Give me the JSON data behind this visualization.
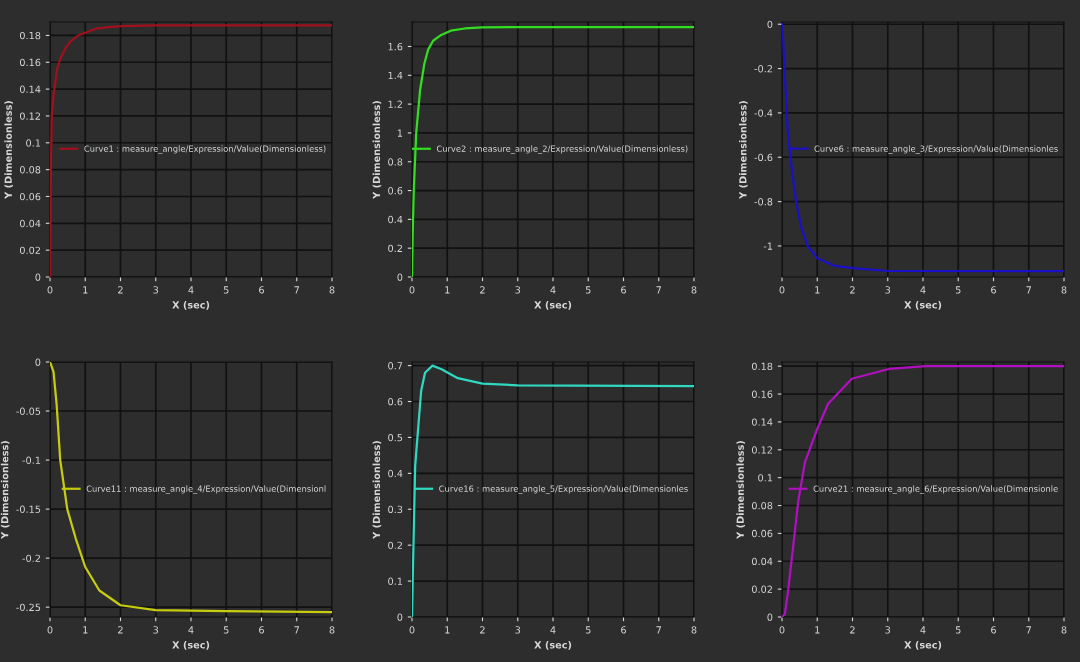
{
  "chart_data": [
    {
      "type": "line",
      "xlabel": "X (sec)",
      "ylabel": "Y (Dimensionless)",
      "xlim": [
        0,
        8
      ],
      "xticks": [
        0,
        1,
        2,
        3,
        4,
        5,
        6,
        7,
        8
      ],
      "ylim": [
        0,
        0.19
      ],
      "yticks": [
        0,
        0.02,
        0.04,
        0.06,
        0.08,
        0.1,
        0.12,
        0.14,
        0.16,
        0.18
      ],
      "grid": true,
      "legend": "right",
      "series": [
        {
          "name": "Curve1 : measure_angle/Expression/Value(Dimensionless)",
          "color": "#a0101e",
          "x": [
            0,
            0.01,
            0.03,
            0.05,
            0.1,
            0.2,
            0.3,
            0.45,
            0.6,
            0.8,
            1,
            1.3,
            1.6,
            2,
            3,
            5,
            8
          ],
          "values": [
            0,
            0.03,
            0.09,
            0.12,
            0.135,
            0.155,
            0.163,
            0.171,
            0.176,
            0.18,
            0.182,
            0.185,
            0.186,
            0.187,
            0.1875,
            0.1875,
            0.1875
          ]
        }
      ]
    },
    {
      "type": "line",
      "xlabel": "X (sec)",
      "ylabel": "Y (Dimensionless)",
      "xlim": [
        0,
        8
      ],
      "xticks": [
        0,
        1,
        2,
        3,
        4,
        5,
        6,
        7,
        8
      ],
      "ylim": [
        0,
        1.77
      ],
      "yticks": [
        0,
        0.2,
        0.4,
        0.6,
        0.8,
        1,
        1.2,
        1.4,
        1.6
      ],
      "grid": true,
      "legend": "right",
      "series": [
        {
          "name": "Curve2 : measure_angle_2/Expression/Value(Dimensionless)",
          "color": "#33dd22",
          "x": [
            0,
            0.02,
            0.05,
            0.12,
            0.23,
            0.35,
            0.46,
            0.6,
            0.83,
            1.1,
            1.5,
            2,
            3,
            8
          ],
          "values": [
            0,
            0.3,
            0.6,
            1.0,
            1.3,
            1.48,
            1.58,
            1.64,
            1.68,
            1.71,
            1.725,
            1.732,
            1.735,
            1.735
          ]
        }
      ]
    },
    {
      "type": "line",
      "xlabel": "X (sec)",
      "ylabel": "Y (Dimensionless)",
      "xlim": [
        0,
        8
      ],
      "xticks": [
        0,
        1,
        2,
        3,
        4,
        5,
        6,
        7,
        8
      ],
      "ylim": [
        -1.14,
        0.01
      ],
      "yticks": [
        -1,
        -0.8,
        -0.6,
        -0.4,
        -0.2,
        0
      ],
      "grid": true,
      "legend": "right",
      "series": [
        {
          "name": "Curve6 : measure_angle_3/Expression/Value(Dimensionles",
          "color": "#1a10c8",
          "x": [
            0,
            0.03,
            0.07,
            0.16,
            0.25,
            0.4,
            0.55,
            0.73,
            1,
            1.5,
            2,
            3,
            8
          ],
          "values": [
            0,
            -0.06,
            -0.2,
            -0.48,
            -0.62,
            -0.8,
            -0.92,
            -1.0,
            -1.055,
            -1.09,
            -1.1,
            -1.113,
            -1.114
          ]
        }
      ]
    },
    {
      "type": "line",
      "xlabel": "X (sec)",
      "ylabel": "Y (Dimensionless)",
      "xlim": [
        0,
        8
      ],
      "xticks": [
        0,
        1,
        2,
        3,
        4,
        5,
        6,
        7,
        8
      ],
      "ylim": [
        -0.26,
        0
      ],
      "yticks": [
        -0.25,
        -0.2,
        -0.15,
        -0.1,
        -0.05,
        0
      ],
      "grid": true,
      "legend": "right",
      "series": [
        {
          "name": "Curve11 : measure_angle_4/Expression/Value(Dimensionl",
          "color": "#c8cc10",
          "x": [
            0,
            0.1,
            0.19,
            0.29,
            0.49,
            0.73,
            1,
            1.4,
            2,
            3,
            5,
            8
          ],
          "values": [
            0,
            -0.01,
            -0.044,
            -0.1,
            -0.15,
            -0.18,
            -0.209,
            -0.233,
            -0.248,
            -0.253,
            -0.254,
            -0.255
          ]
        }
      ]
    },
    {
      "type": "line",
      "xlabel": "X (sec)",
      "ylabel": "Y (Dimensionless)",
      "xlim": [
        0,
        8
      ],
      "xticks": [
        0,
        1,
        2,
        3,
        4,
        5,
        6,
        7,
        8
      ],
      "ylim": [
        0,
        0.71
      ],
      "yticks": [
        0,
        0.1,
        0.2,
        0.3,
        0.4,
        0.5,
        0.6,
        0.7
      ],
      "grid": true,
      "legend": "right",
      "series": [
        {
          "name": "Curve16 : measure_angle_5/Expression/Value(Dimensionles",
          "color": "#30d8c0",
          "x": [
            0,
            0.02,
            0.05,
            0.09,
            0.17,
            0.26,
            0.37,
            0.58,
            0.84,
            1.3,
            2,
            3,
            8
          ],
          "values": [
            0,
            0.1,
            0.24,
            0.42,
            0.52,
            0.63,
            0.68,
            0.7,
            0.69,
            0.665,
            0.65,
            0.645,
            0.643
          ]
        }
      ]
    },
    {
      "type": "line",
      "xlabel": "X (sec)",
      "ylabel": "Y (Dimensionless)",
      "xlim": [
        0,
        8
      ],
      "xticks": [
        0,
        1,
        2,
        3,
        4,
        5,
        6,
        7,
        8
      ],
      "ylim": [
        0,
        0.183
      ],
      "yticks": [
        0,
        0.02,
        0.04,
        0.06,
        0.08,
        0.1,
        0.12,
        0.14,
        0.16,
        0.18
      ],
      "grid": true,
      "legend": "right",
      "series": [
        {
          "name": "Curve21 : measure_angle_6/Expression/Value(Dimensionle",
          "color": "#b010c0",
          "x": [
            0,
            0.08,
            0.17,
            0.31,
            0.46,
            0.65,
            1,
            1.31,
            1.98,
            3.03,
            4.08,
            8
          ],
          "values": [
            0,
            0.002,
            0.018,
            0.049,
            0.083,
            0.111,
            0.135,
            0.153,
            0.171,
            0.178,
            0.18,
            0.18
          ]
        }
      ]
    }
  ]
}
